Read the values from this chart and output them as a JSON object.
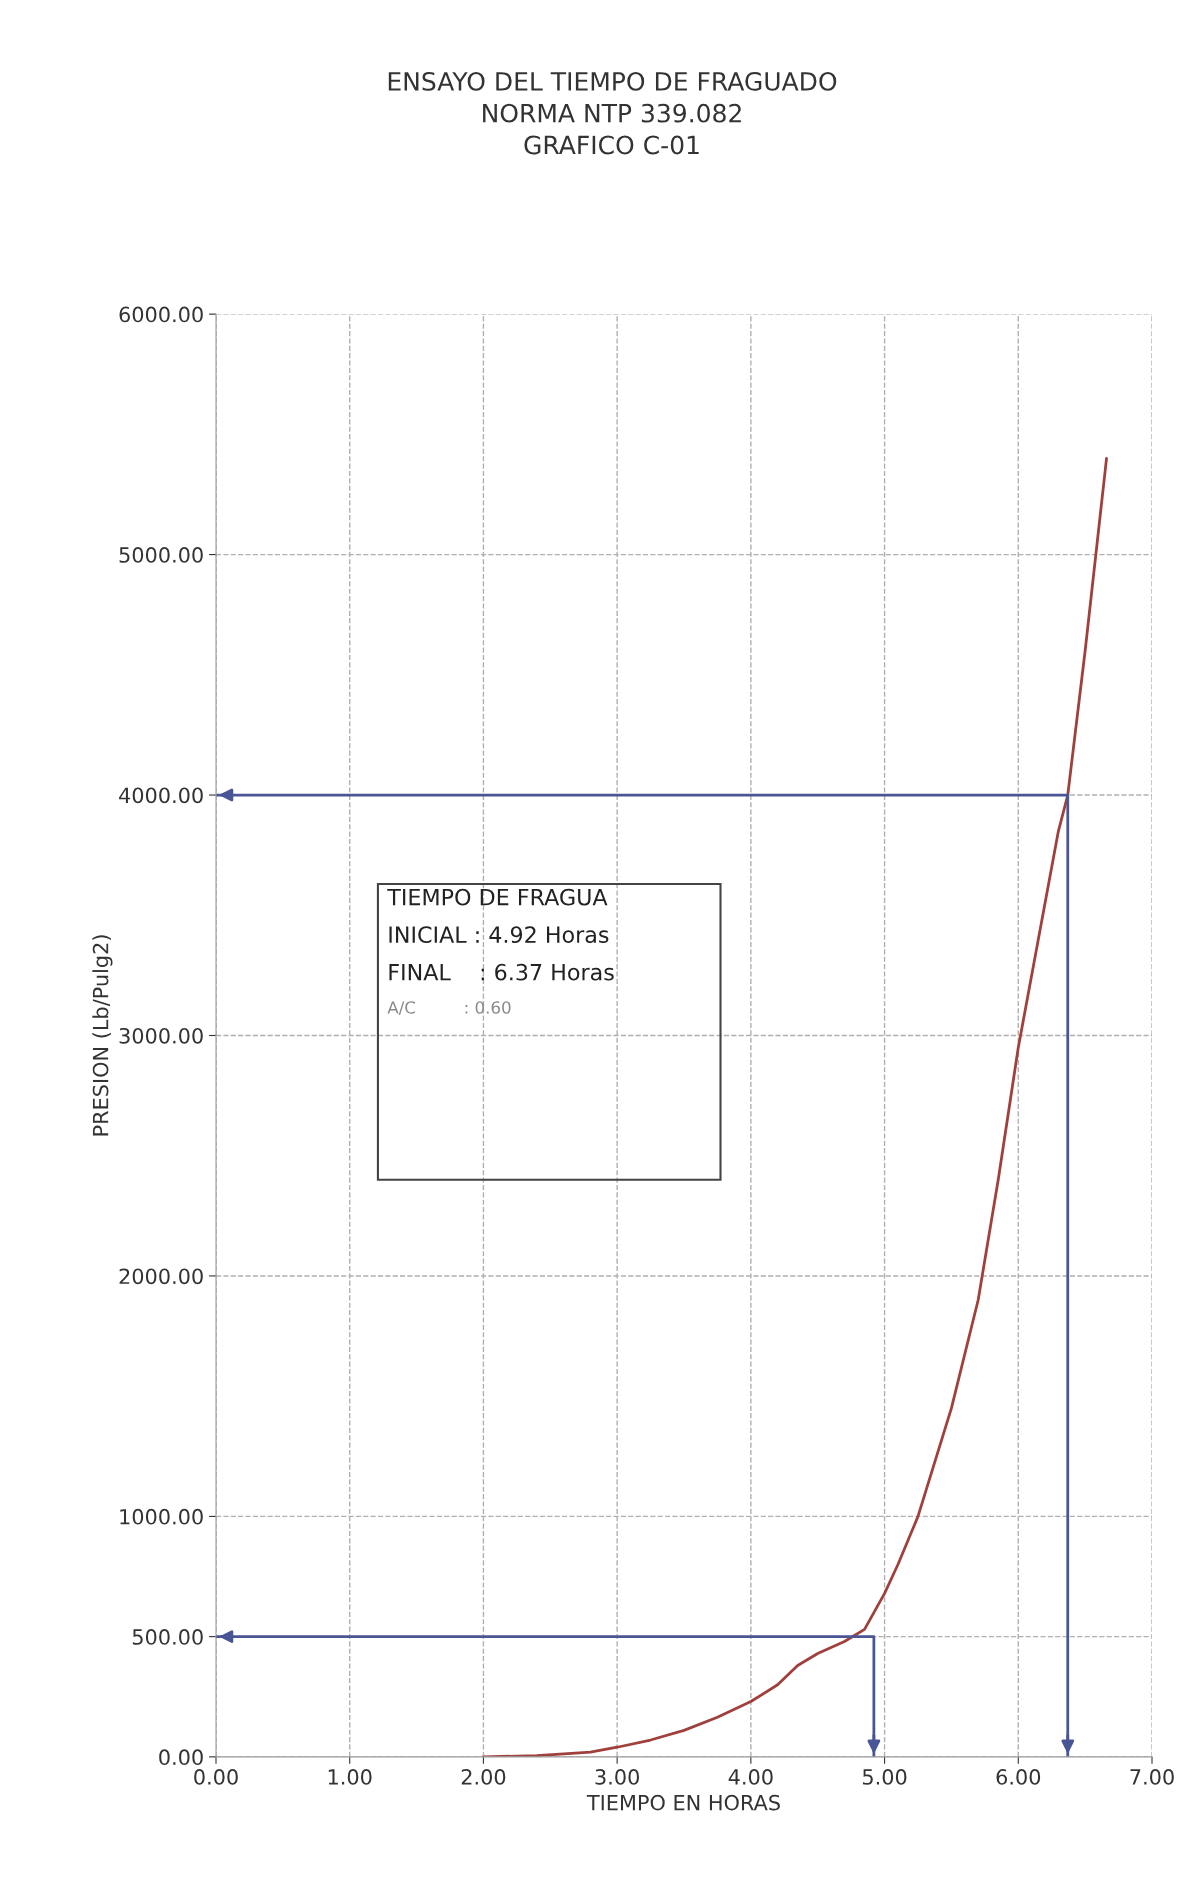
{
  "chart_data": {
    "type": "line",
    "title": "ENSAYO DEL TIEMPO DE FRAGUADO\nNORMA NTP 339.082\nGRAFICO C-01",
    "xlabel": "TIEMPO EN HORAS",
    "ylabel": "PRESION (Lb/Pulg2)",
    "series": [
      {
        "color": "#a0403c",
        "x": [
          2.0,
          2.4,
          2.8,
          3.0,
          3.25,
          3.5,
          3.75,
          4.0,
          4.2,
          4.35,
          4.5,
          4.7,
          4.85,
          4.92,
          5.0,
          5.1,
          5.25,
          5.5,
          5.7,
          5.85,
          6.0,
          6.15,
          6.3,
          6.37,
          6.5,
          6.66
        ],
        "values": [
          0,
          5,
          20,
          40,
          70,
          110,
          165,
          230,
          300,
          380,
          430,
          480,
          530,
          600,
          680,
          800,
          1000,
          1450,
          1900,
          2400,
          2950,
          3400,
          3850,
          4000,
          4600,
          5400
        ]
      },
      {
        "color": "#4a5596",
        "x": [
          0,
          4.92,
          4.92
        ],
        "values": [
          500,
          500,
          0
        ]
      },
      {
        "color": "#4a5596",
        "x": [
          0,
          6.37,
          6.37
        ],
        "values": [
          4000,
          4000,
          0
        ]
      }
    ],
    "xlim": [
      0,
      7
    ],
    "xticks": [
      {
        "value": 0,
        "label": "0.00"
      },
      {
        "value": 1,
        "label": "1.00"
      },
      {
        "value": 2,
        "label": "2.00"
      },
      {
        "value": 3,
        "label": "3.00"
      },
      {
        "value": 4,
        "label": "4.00"
      },
      {
        "value": 5,
        "label": "5.00"
      },
      {
        "value": 6,
        "label": "6.00"
      },
      {
        "value": 7,
        "label": "7.00"
      }
    ],
    "ylim": [
      0,
      6000
    ],
    "yticks": [
      {
        "value": 0,
        "label": "0.00"
      },
      {
        "value": 500,
        "label": "500.00"
      },
      {
        "value": 1000,
        "label": "1000.00"
      },
      {
        "value": 2000,
        "label": "2000.00"
      },
      {
        "value": 3000,
        "label": "3000.00"
      },
      {
        "value": 4000,
        "label": "4000.00"
      },
      {
        "value": 5000,
        "label": "5000.00"
      },
      {
        "value": 6000,
        "label": "6000.00"
      }
    ],
    "grid": true,
    "line_style": "solid",
    "marker": "none",
    "annotations": [
      "TIEMPO DE FRAGUA",
      "INICIAL : 4.92 Horas",
      "FINAL    : 6.37 Horas",
      "A/C         : 0.60"
    ]
  }
}
